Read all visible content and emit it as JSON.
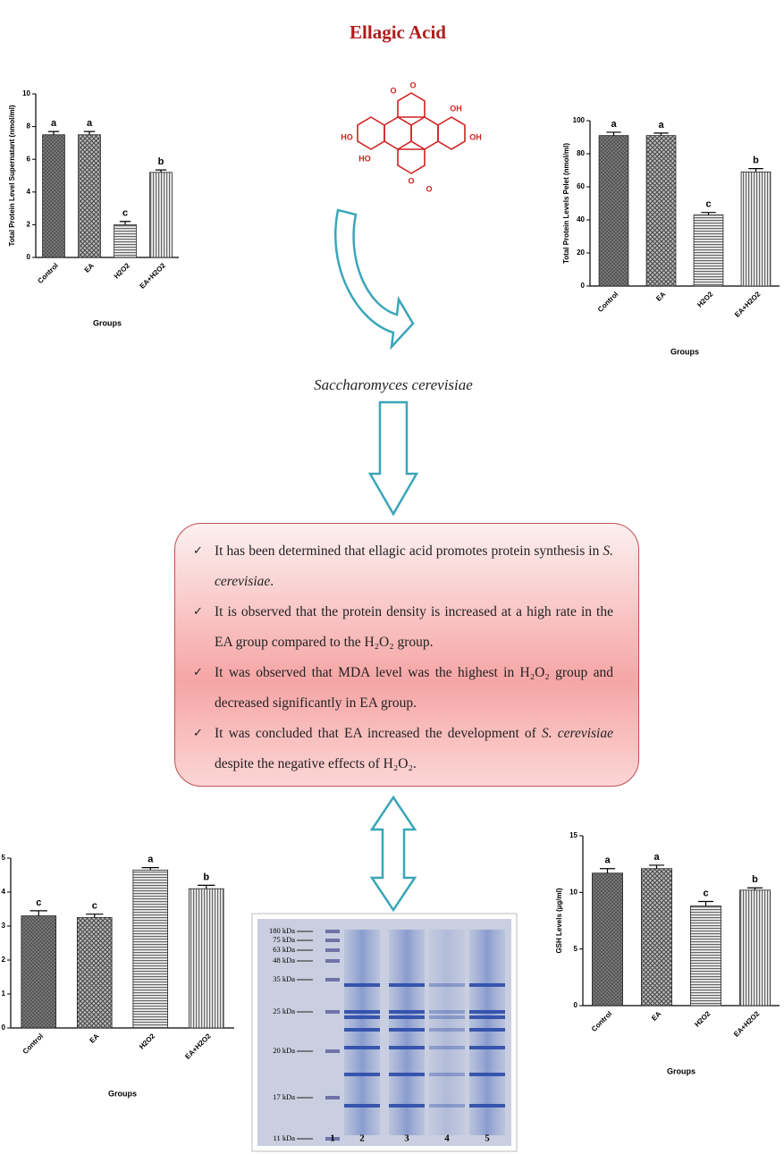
{
  "title": "Ellagic Acid",
  "molecule": {
    "labels": [
      "O",
      "O",
      "OH",
      "HO",
      "OH",
      "HO",
      "O",
      "O"
    ]
  },
  "organism": "Saccharomyces cerevisiae",
  "findings": [
    [
      "It has been determined that ellagic acid promotes protein synthesis in ",
      "S. cerevisiae",
      "."
    ],
    [
      "It is observed that the protein density is increased at a high rate in the EA group compared to the H₂O₂ group."
    ],
    [
      "It was observed that MDA level was the highest in H₂O₂ group and decreased significantly in EA group."
    ],
    [
      "It was concluded that EA increased the development of ",
      "S. cerevisiae",
      " despite the negative effects of H₂O₂."
    ]
  ],
  "charts": [
    {
      "type": "bar",
      "y_label": "Total Protein Level Supernatant (nmol/ml)",
      "x_label": "Groups",
      "categories": [
        "Control",
        "EA",
        "H2O2",
        "EA+H2O2"
      ],
      "values": [
        7.5,
        7.5,
        2.0,
        5.2
      ],
      "errors": [
        0.2,
        0.2,
        0.2,
        0.15
      ],
      "letters": [
        "a",
        "a",
        "c",
        "b"
      ],
      "ylim": [
        0,
        10
      ],
      "yticks": [
        0,
        2,
        4,
        6,
        8,
        10
      ]
    },
    {
      "type": "bar",
      "y_label": "Total Protein Levels Pelet (nmol/ml)",
      "x_label": "Groups",
      "categories": [
        "Control",
        "EA",
        "H2O2",
        "EA+H2O2"
      ],
      "values": [
        91,
        91,
        43,
        69
      ],
      "errors": [
        2,
        1.5,
        1.5,
        2
      ],
      "letters": [
        "a",
        "a",
        "c",
        "b"
      ],
      "ylim": [
        0,
        100
      ],
      "yticks": [
        0,
        20,
        40,
        60,
        80,
        100
      ]
    },
    {
      "type": "bar",
      "x_label": "Groups",
      "categories": [
        "Control",
        "EA",
        "H2O2",
        "EA+H2O2"
      ],
      "values": [
        3.3,
        3.25,
        4.65,
        4.1
      ],
      "errors": [
        0.15,
        0.1,
        0.07,
        0.1
      ],
      "letters": [
        "c",
        "c",
        "a",
        "b"
      ],
      "ylim": [
        0,
        5
      ],
      "yticks": [
        0,
        1,
        2,
        3,
        4,
        5
      ]
    },
    {
      "type": "bar",
      "y_label": "GSH Levels (µg/ml)",
      "x_label": "Groups",
      "categories": [
        "Control",
        "EA",
        "H2O2",
        "EA+H2O2"
      ],
      "values": [
        11.7,
        12.1,
        8.8,
        10.2
      ],
      "errors": [
        0.4,
        0.3,
        0.4,
        0.2
      ],
      "letters": [
        "a",
        "a",
        "c",
        "b"
      ],
      "ylim": [
        0,
        15
      ],
      "yticks": [
        0,
        5,
        10,
        15
      ]
    }
  ],
  "gel": {
    "markers": [
      "180 kDa",
      "75 kDa",
      "63 kDa",
      "48 kDa",
      "35 kDa",
      "25 kDa",
      "20 kDa",
      "17 kDa",
      "11 kDa"
    ],
    "lanes": [
      "1",
      "2",
      "3",
      "4",
      "5"
    ]
  }
}
